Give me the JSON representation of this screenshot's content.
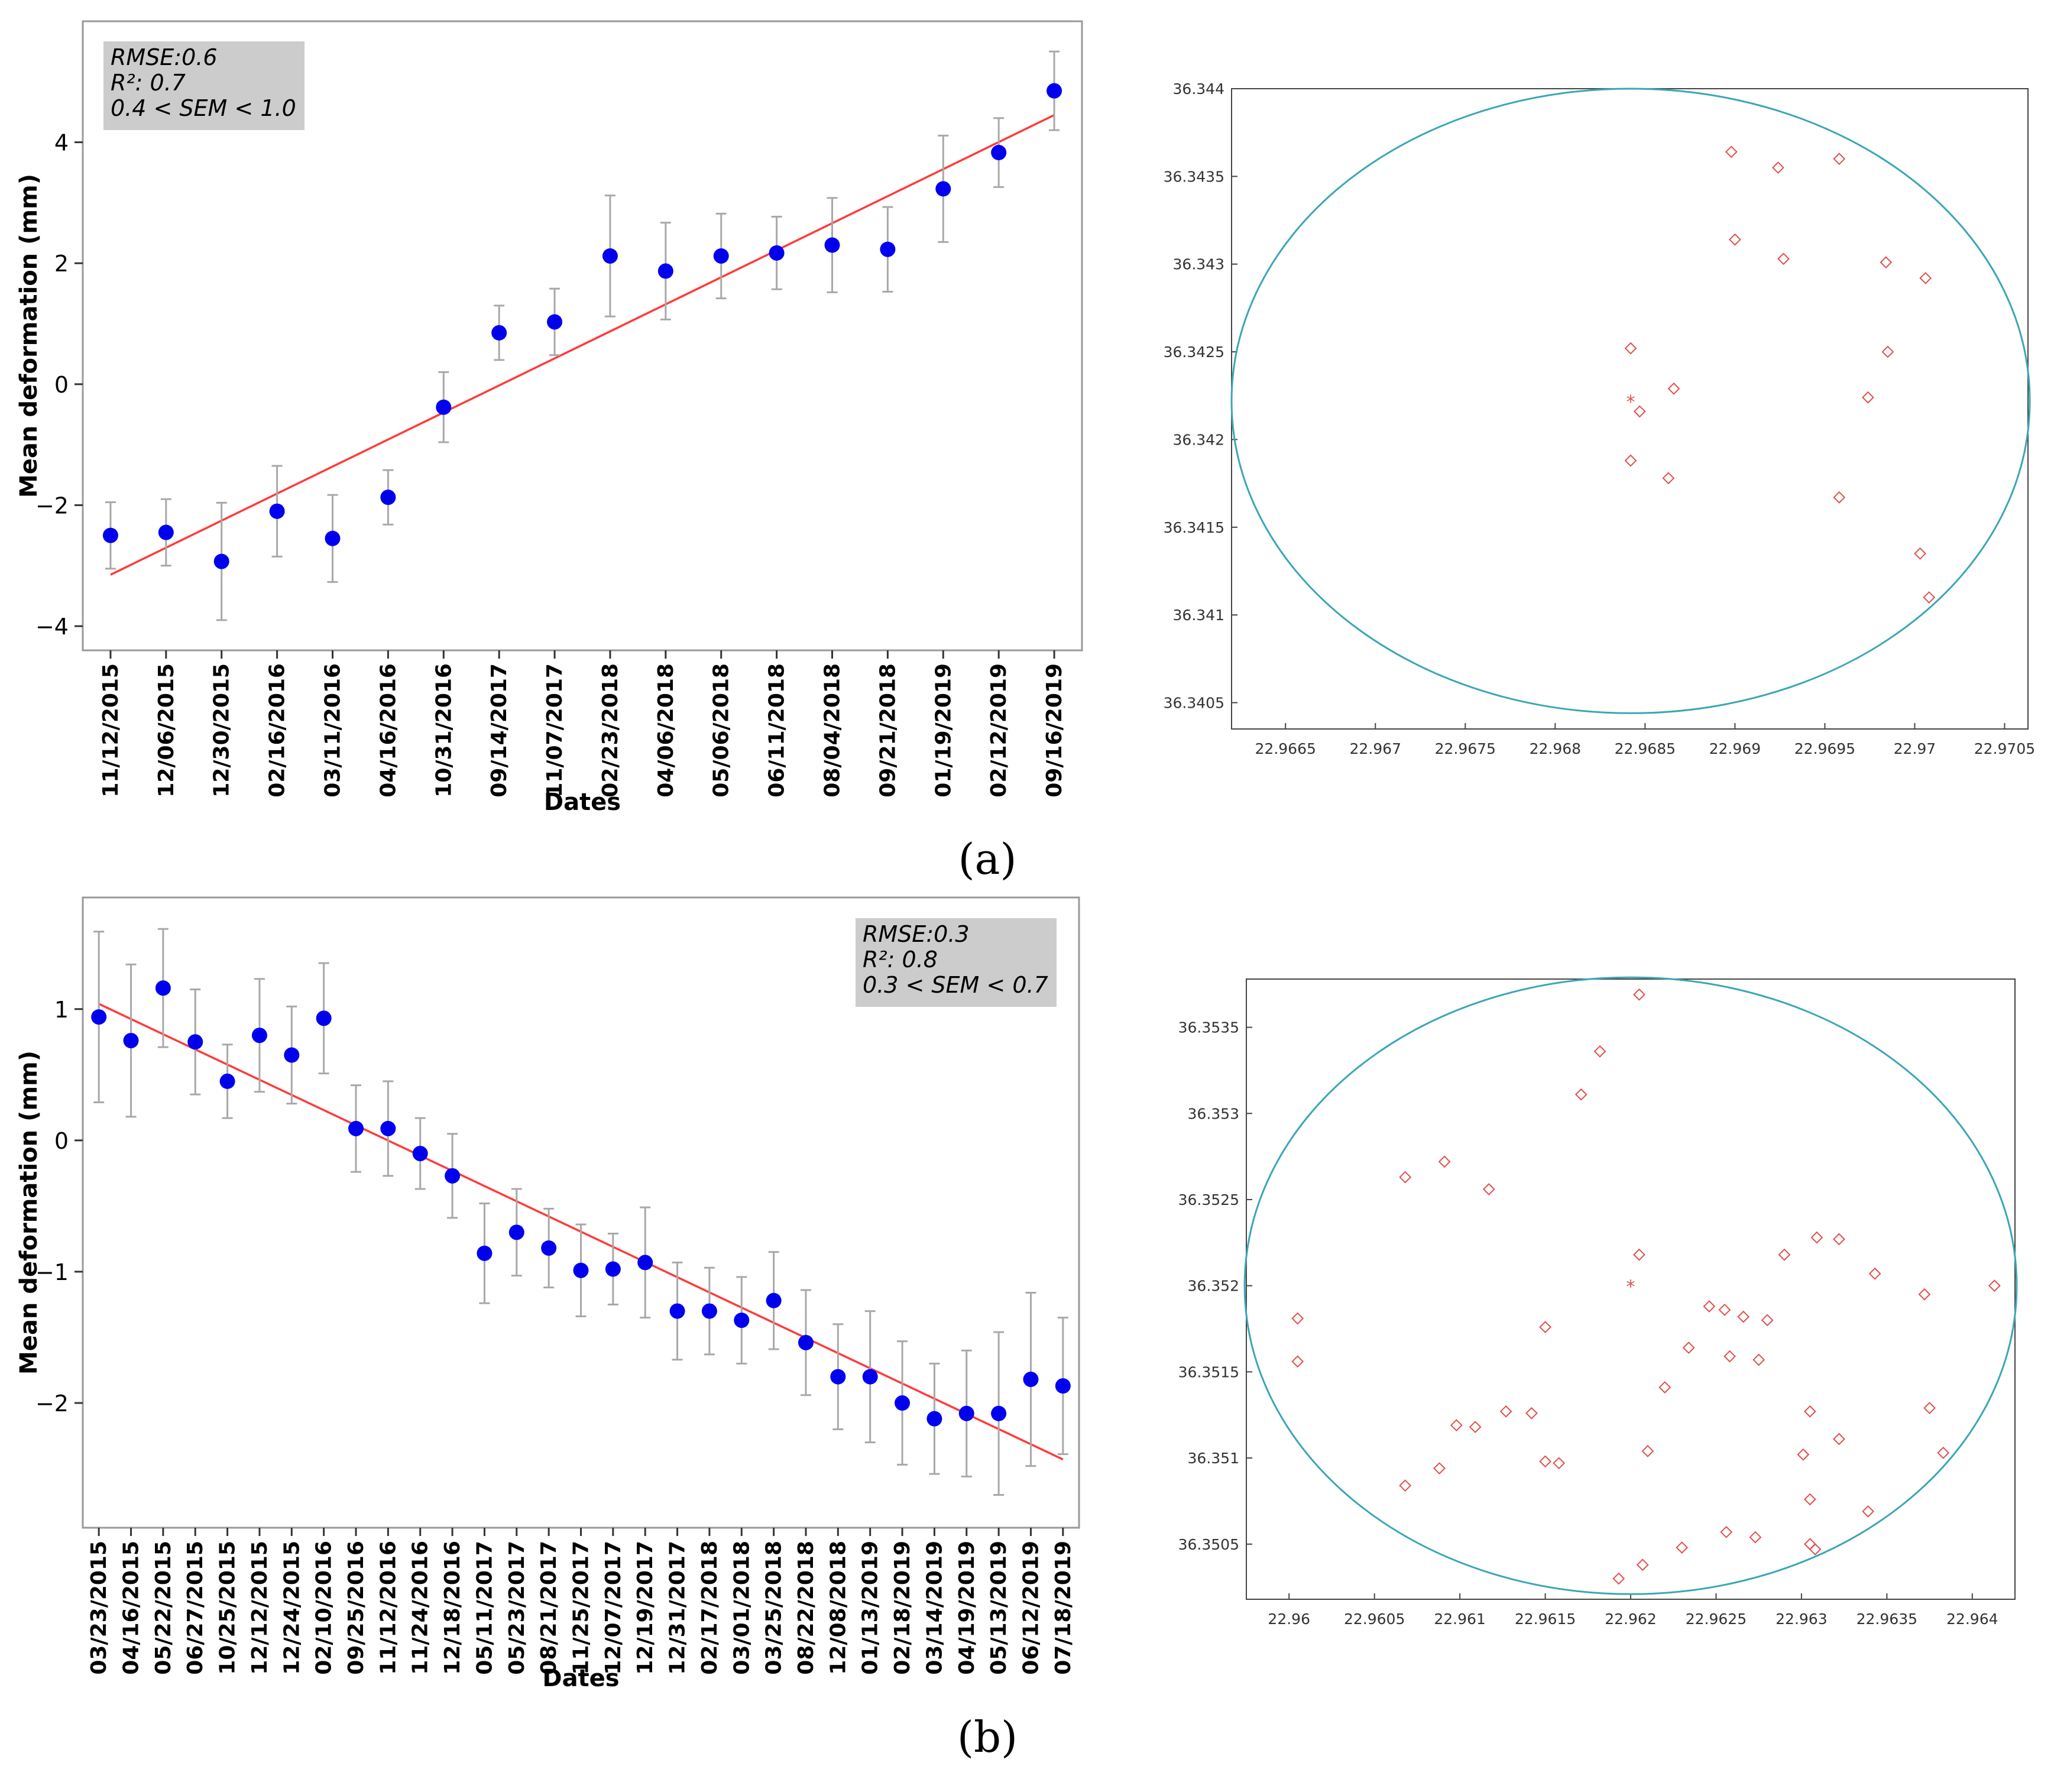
{
  "figure": {
    "panel_a_label": "(a)",
    "panel_b_label": "(b)",
    "colors": {
      "point": "#0000ee",
      "errorbar": "#a8a8a8",
      "fit": "#ff3b3b",
      "circle": "#3aa6b6",
      "marker": "#e0504c",
      "statsbox": "#cccccc",
      "axis": "#999999"
    }
  },
  "chart_data": [
    {
      "id": "ts_a",
      "type": "scatter",
      "title": "",
      "xlabel": "Dates",
      "ylabel": "Mean deformation (mm)",
      "ylim": [
        -4.4,
        6.0
      ],
      "yticks": [
        -4,
        -2,
        0,
        2,
        4
      ],
      "ytick_labels": [
        "−4",
        "−2",
        "0",
        "2",
        "4"
      ],
      "stats": [
        "RMSE:0.6",
        "R²: 0.7",
        "0.4 < SEM < 1.0"
      ],
      "stats_position": "top-left",
      "categories": [
        "11/12/2015",
        "12/06/2015",
        "12/30/2015",
        "02/16/2016",
        "03/11/2016",
        "04/16/2016",
        "10/31/2016",
        "09/14/2017",
        "11/07/2017",
        "02/23/2018",
        "04/06/2018",
        "05/06/2018",
        "06/11/2018",
        "08/04/2018",
        "09/21/2018",
        "01/19/2019",
        "02/12/2019",
        "09/16/2019"
      ],
      "values": [
        -2.5,
        -2.45,
        -2.93,
        -2.1,
        -2.55,
        -1.87,
        -0.38,
        0.85,
        1.03,
        2.12,
        1.87,
        2.12,
        2.17,
        2.3,
        2.23,
        3.23,
        3.83,
        4.85
      ],
      "errors": [
        0.55,
        0.55,
        0.97,
        0.75,
        0.72,
        0.45,
        0.58,
        0.45,
        0.55,
        1.0,
        0.8,
        0.7,
        0.6,
        0.78,
        0.7,
        0.88,
        0.57,
        0.65
      ],
      "fit_line": {
        "start": -3.15,
        "end": 4.45
      }
    },
    {
      "id": "map_a",
      "type": "scatter",
      "title": "",
      "xlabel": "",
      "ylabel": "",
      "xlim": [
        22.9662,
        22.97063
      ],
      "ylim": [
        36.34035,
        36.344
      ],
      "xticks": [
        22.9665,
        22.967,
        22.9675,
        22.968,
        22.9685,
        22.969,
        22.9695,
        22.97,
        22.9705
      ],
      "xtick_labels": [
        "22.9665",
        "22.967",
        "22.9675",
        "22.968",
        "22.9685",
        "22.969",
        "22.9695",
        "22.97",
        "22.9705"
      ],
      "yticks": [
        36.3405,
        36.341,
        36.3415,
        36.342,
        36.3425,
        36.343,
        36.3435,
        36.344
      ],
      "ytick_labels": [
        "36.3405",
        "36.341",
        "36.3415",
        "36.342",
        "36.3425",
        "36.343",
        "36.3435",
        "36.344"
      ],
      "center": [
        22.96842,
        36.34222
      ],
      "circle": {
        "cx": 22.96842,
        "cy": 36.34222,
        "rx": 0.00222,
        "ry": 0.00178
      },
      "x": [
        22.96842,
        22.96847,
        22.96866,
        22.96842,
        22.96863,
        22.96898,
        22.96924,
        22.96958,
        22.969,
        22.96927,
        22.96984,
        22.97006,
        22.96985,
        22.96974,
        22.96958,
        22.97003,
        22.97008
      ],
      "y": [
        36.34252,
        36.34216,
        36.34229,
        36.34188,
        36.34178,
        36.34364,
        36.34355,
        36.3436,
        36.34314,
        36.34303,
        36.34301,
        36.34292,
        36.3425,
        36.34224,
        36.34167,
        36.34135,
        36.3411
      ]
    },
    {
      "id": "ts_b",
      "type": "scatter",
      "title": "",
      "xlabel": "Dates",
      "ylabel": "Mean deformation (mm)",
      "ylim": [
        -2.95,
        1.85
      ],
      "yticks": [
        -2,
        -1,
        0,
        1
      ],
      "ytick_labels": [
        "−2",
        "−1",
        "0",
        "1"
      ],
      "stats": [
        "RMSE:0.3",
        "R²: 0.8",
        "0.3 < SEM < 0.7"
      ],
      "stats_position": "top-right",
      "categories": [
        "03/23/2015",
        "04/16/2015",
        "05/22/2015",
        "06/27/2015",
        "10/25/2015",
        "12/12/2015",
        "12/24/2015",
        "02/10/2016",
        "09/25/2016",
        "11/12/2016",
        "11/24/2016",
        "12/18/2016",
        "05/11/2017",
        "05/23/2017",
        "08/21/2017",
        "11/25/2017",
        "12/07/2017",
        "12/19/2017",
        "12/31/2017",
        "02/17/2018",
        "03/01/2018",
        "03/25/2018",
        "08/22/2018",
        "12/08/2018",
        "01/13/2019",
        "02/18/2019",
        "03/14/2019",
        "04/19/2019",
        "05/13/2019",
        "06/12/2019",
        "07/18/2019"
      ],
      "values": [
        0.94,
        0.76,
        1.16,
        0.75,
        0.45,
        0.8,
        0.65,
        0.93,
        0.09,
        0.09,
        -0.1,
        -0.27,
        -0.86,
        -0.7,
        -0.82,
        -0.99,
        -0.98,
        -0.93,
        -1.3,
        -1.3,
        -1.37,
        -1.22,
        -1.54,
        -1.8,
        -1.8,
        -2.0,
        -2.12,
        -2.08,
        -2.08,
        -1.82,
        -1.87
      ],
      "errors": [
        0.65,
        0.58,
        0.45,
        0.4,
        0.28,
        0.43,
        0.37,
        0.42,
        0.33,
        0.36,
        0.27,
        0.32,
        0.38,
        0.33,
        0.3,
        0.35,
        0.27,
        0.42,
        0.37,
        0.33,
        0.33,
        0.37,
        0.4,
        0.4,
        0.5,
        0.47,
        0.42,
        0.48,
        0.62,
        0.66,
        0.52
      ],
      "fit_line": {
        "start": 1.04,
        "end": -2.43
      }
    },
    {
      "id": "map_b",
      "type": "scatter",
      "title": "",
      "xlabel": "",
      "ylabel": "",
      "xlim": [
        22.95975,
        22.96425
      ],
      "ylim": [
        36.35018,
        36.35378
      ],
      "xticks": [
        22.96,
        22.9605,
        22.961,
        22.9615,
        22.962,
        22.9625,
        22.963,
        22.9635,
        22.964
      ],
      "xtick_labels": [
        "22.96",
        "22.9605",
        "22.961",
        "22.9615",
        "22.962",
        "22.9625",
        "22.963",
        "22.9635",
        "22.964"
      ],
      "yticks": [
        36.3505,
        36.351,
        36.3515,
        36.352,
        36.3525,
        36.353,
        36.3535
      ],
      "ytick_labels": [
        "36.3505",
        "36.351",
        "36.3515",
        "36.352",
        "36.3525",
        "36.353",
        "36.3535"
      ],
      "center": [
        22.962,
        36.352
      ],
      "circle": {
        "cx": 22.962,
        "cy": 36.352,
        "rx": 0.00226,
        "ry": 0.00179
      },
      "x": [
        22.96005,
        22.96005,
        22.96068,
        22.96091,
        22.96117,
        22.96068,
        22.96088,
        22.96098,
        22.96109,
        22.96127,
        22.96142,
        22.9615,
        22.9615,
        22.96158,
        22.96171,
        22.96182,
        22.96205,
        22.96205,
        22.9621,
        22.96207,
        22.9622,
        22.96234,
        22.96246,
        22.96255,
        22.96266,
        22.96275,
        22.9628,
        22.96258,
        22.9629,
        22.96309,
        22.96305,
        22.96322,
        22.96305,
        22.96322,
        22.96301,
        22.96305,
        22.96308,
        22.96343,
        22.96372,
        22.96375,
        22.96383,
        22.96413,
        22.96193,
        22.9623,
        22.96256,
        22.96273,
        22.96339
      ],
      "y": [
        36.35156,
        36.35181,
        36.35263,
        36.35272,
        36.35256,
        36.35084,
        36.35094,
        36.35119,
        36.35118,
        36.35127,
        36.35126,
        36.35098,
        36.35176,
        36.35097,
        36.35311,
        36.35336,
        36.35369,
        36.35218,
        36.35104,
        36.35038,
        36.35141,
        36.35164,
        36.35188,
        36.35186,
        36.35182,
        36.35157,
        36.3518,
        36.35159,
        36.35218,
        36.35228,
        36.35127,
        36.35111,
        36.35076,
        36.35227,
        36.35102,
        36.3505,
        36.35047,
        36.35207,
        36.35195,
        36.35129,
        36.35103,
        36.352,
        36.3503,
        36.35048,
        36.35057,
        36.35054,
        36.35069
      ]
    }
  ]
}
